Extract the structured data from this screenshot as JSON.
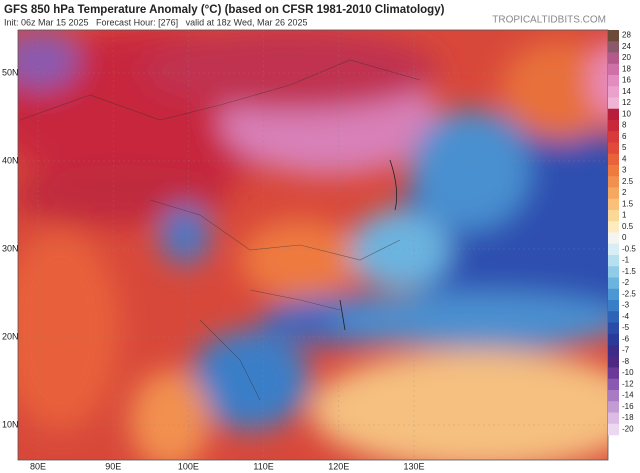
{
  "header": {
    "title": "GFS 850 hPa Temperature Anomaly (°C) (based on CFSR 1981-2010 Climatology)",
    "subtitle": "Init: 06z Mar 15 2025   Forecast Hour: [276]   valid at 18z Wed, Mar 26 2025",
    "source": "TROPICALTIDBITS.COM"
  },
  "map": {
    "lat_labels": [
      "50N",
      "40N",
      "30N",
      "20N",
      "10N"
    ],
    "lon_labels": [
      "80E",
      "90E",
      "100E",
      "110E",
      "120E",
      "130E"
    ]
  },
  "colorbar": [
    {
      "label": "28",
      "color": "#6b4a3a"
    },
    {
      "label": "24",
      "color": "#8a5a6a"
    },
    {
      "label": "20",
      "color": "#b35a8a"
    },
    {
      "label": "18",
      "color": "#d070a8"
    },
    {
      "label": "16",
      "color": "#e28cc0"
    },
    {
      "label": "14",
      "color": "#eca0cc"
    },
    {
      "label": "12",
      "color": "#f0b4d4"
    },
    {
      "label": "10",
      "color": "#b81e3a"
    },
    {
      "label": "8",
      "color": "#c8283a"
    },
    {
      "label": "6",
      "color": "#d83a3a"
    },
    {
      "label": "5",
      "color": "#e04a3a"
    },
    {
      "label": "4",
      "color": "#e8623a"
    },
    {
      "label": "3",
      "color": "#ee7a40"
    },
    {
      "label": "2.5",
      "color": "#f29050"
    },
    {
      "label": "2",
      "color": "#f5a860"
    },
    {
      "label": "1.5",
      "color": "#f8c078"
    },
    {
      "label": "1",
      "color": "#fad898"
    },
    {
      "label": "0.5",
      "color": "#fcecc0"
    },
    {
      "label": "0",
      "color": "#f4f4f0"
    },
    {
      "label": "-0.5",
      "color": "#d8eef4"
    },
    {
      "label": "-1",
      "color": "#b4e0f0"
    },
    {
      "label": "-1.5",
      "color": "#90cce8"
    },
    {
      "label": "-2",
      "color": "#6cb4e0"
    },
    {
      "label": "-2.5",
      "color": "#4c98d4"
    },
    {
      "label": "-3",
      "color": "#3a7ec8"
    },
    {
      "label": "-4",
      "color": "#2e64b8"
    },
    {
      "label": "-5",
      "color": "#2a4ca8"
    },
    {
      "label": "-6",
      "color": "#2a3a98"
    },
    {
      "label": "-7",
      "color": "#3a2c88"
    },
    {
      "label": "-8",
      "color": "#4c2a84"
    },
    {
      "label": "-10",
      "color": "#6a3a98"
    },
    {
      "label": "-12",
      "color": "#8a5ab0"
    },
    {
      "label": "-14",
      "color": "#a87cc4"
    },
    {
      "label": "-16",
      "color": "#c49cd4"
    },
    {
      "label": "-18",
      "color": "#dcbce4"
    },
    {
      "label": "-20",
      "color": "#ecd8f0"
    }
  ]
}
